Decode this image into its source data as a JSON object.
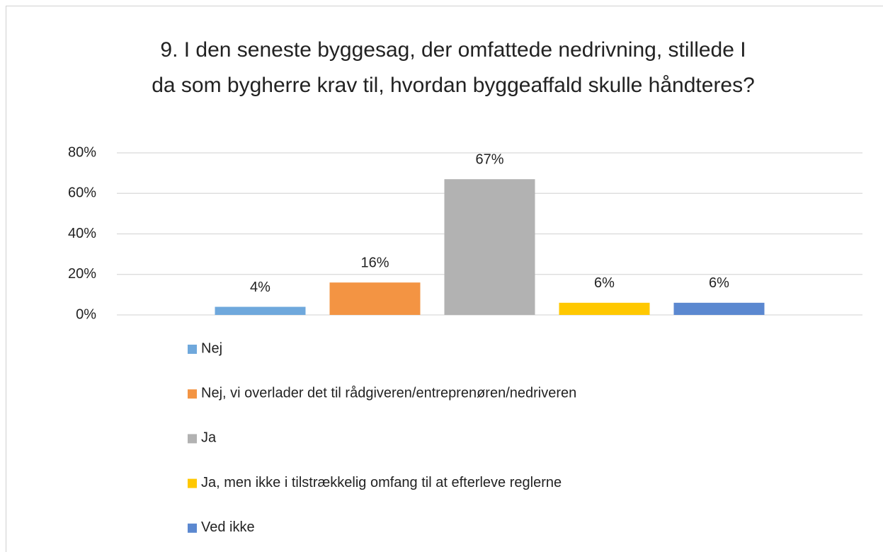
{
  "chart_data": {
    "type": "bar",
    "title": [
      "9. I den seneste byggesag, der omfattede nedrivning, stillede I",
      "da som bygherre krav til, hvordan byggeaffald skulle håndteres?"
    ],
    "categories": [
      null
    ],
    "series": [
      {
        "name": "Nej",
        "color": "#6fa8dc",
        "values": [
          4
        ],
        "value_labels": [
          "4%"
        ]
      },
      {
        "name": "Nej, vi overlader det til rådgiveren/entreprenøren/nedriveren",
        "color": "#f39443",
        "values": [
          16
        ],
        "value_labels": [
          "16%"
        ]
      },
      {
        "name": "Ja",
        "color": "#b2b2b2",
        "values": [
          67
        ],
        "value_labels": [
          "67%"
        ]
      },
      {
        "name": "Ja, men ikke i tilstrækkelig omfang til at efterleve reglerne",
        "color": "#ffc800",
        "values": [
          6
        ],
        "value_labels": [
          "6%"
        ]
      },
      {
        "name": "Ved ikke",
        "color": "#5b88d0",
        "values": [
          6
        ],
        "value_labels": [
          "6%"
        ]
      }
    ],
    "ylim": [
      0,
      80
    ],
    "yticks": [
      {
        "value": 0,
        "label": "0%"
      },
      {
        "value": 20,
        "label": "20%"
      },
      {
        "value": 40,
        "label": "40%"
      },
      {
        "value": 60,
        "label": "60%"
      },
      {
        "value": 80,
        "label": "80%"
      }
    ],
    "grid": true,
    "legend": "bottom"
  }
}
